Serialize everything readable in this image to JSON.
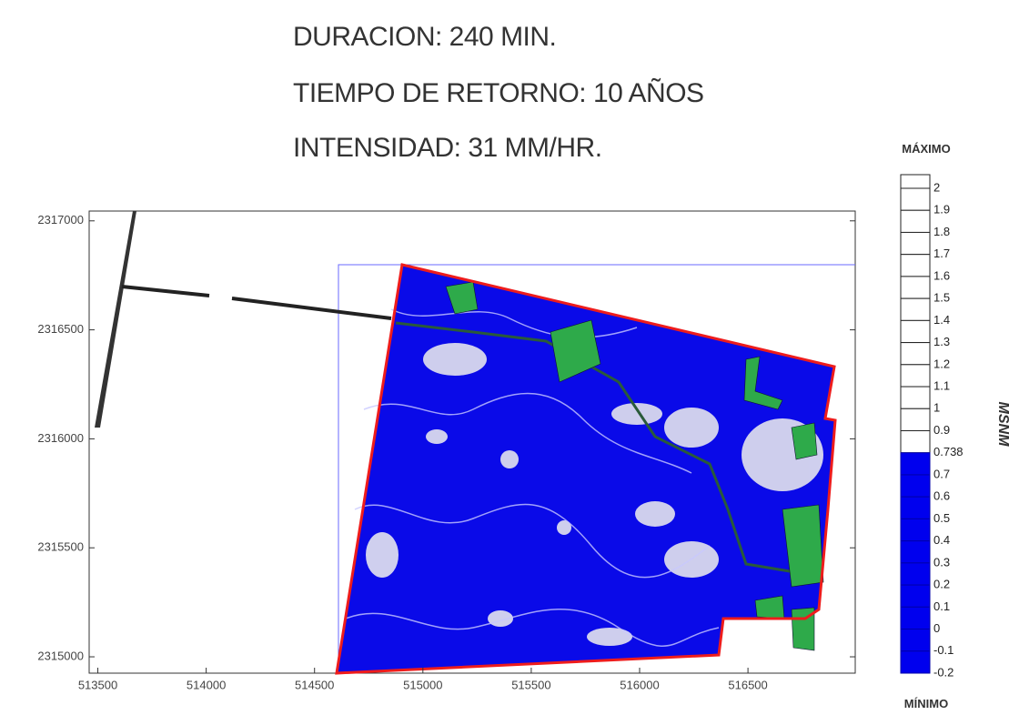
{
  "header": {
    "lines": [
      "DURACION: 240 MIN.",
      "TIEMPO DE RETORNO: 10 AÑOS",
      "INTENSIDAD: 31 MM/HR."
    ]
  },
  "map": {
    "xlim": [
      513460,
      516995
    ],
    "ylim": [
      2314925,
      2317045
    ],
    "xticks": [
      513500,
      514000,
      514500,
      515000,
      515500,
      516000,
      516500
    ],
    "yticks": [
      2315000,
      2315500,
      2316000,
      2316500,
      2317000
    ]
  },
  "legend": {
    "max_label": "MÁXIMO",
    "min_label": "MÍNIMO",
    "unit": "MSNM",
    "levels": [
      2,
      1.9,
      1.8,
      1.7,
      1.6,
      1.5,
      1.4,
      1.3,
      1.2,
      1.1,
      1,
      0.9,
      0.738,
      0.7,
      0.6,
      0.5,
      0.4,
      0.3,
      0.2,
      0.1,
      0,
      -0.1,
      -0.2
    ],
    "threshold": 0.738,
    "color_below": "#0000ee",
    "color_above": "#ffffff"
  }
}
